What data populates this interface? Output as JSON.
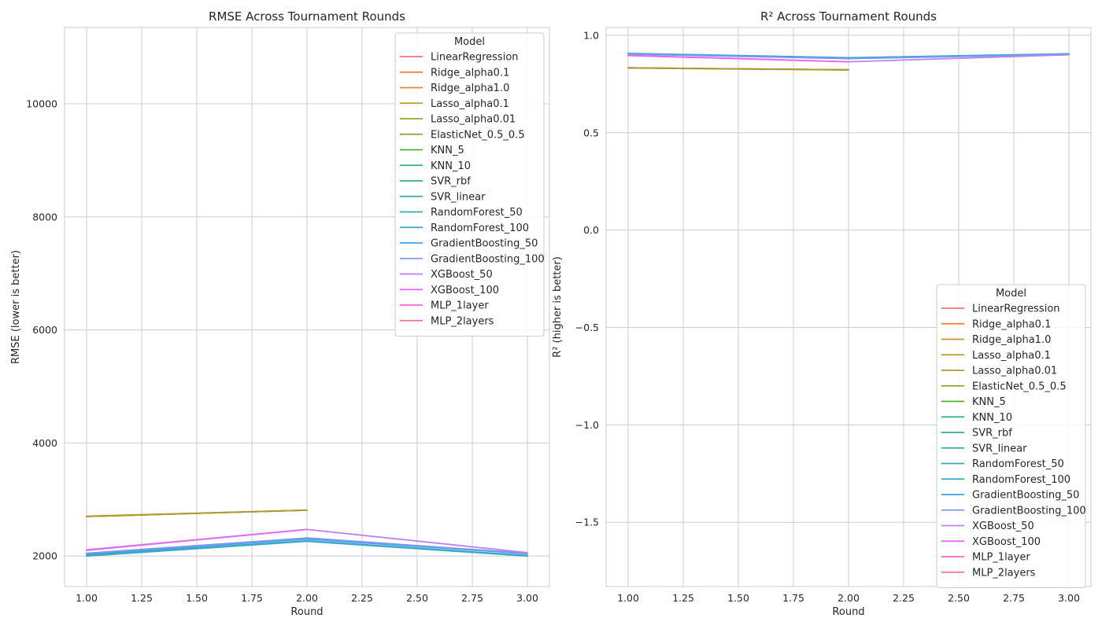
{
  "colors": {
    "LinearRegression": "#f77189",
    "Ridge_alpha0.1": "#ee7b3a",
    "Ridge_alpha1.0": "#d58c32",
    "Lasso_alpha0.1": "#bd9932",
    "Lasso_alpha0.01": "#a69e31",
    "ElasticNet_0.5_0.5": "#86a431",
    "KNN_5": "#50b131",
    "KNN_10": "#33b07a",
    "SVR_rbf": "#34ae91",
    "SVR_linear": "#36ada4",
    "RandomForest_50": "#37abb4",
    "RandomForest_100": "#39a7d0",
    "GradientBoosting_50": "#3ba3ec",
    "GradientBoosting_100": "#8197f4",
    "XGBoost_50": "#bb83f4",
    "XGBoost_100": "#e866f4",
    "MLP_1layer": "#f565cc",
    "MLP_2layers": "#f66bad",
    "grid": "#cccccc",
    "spine": "#cccccc"
  },
  "chart_data": [
    {
      "type": "line",
      "title": "RMSE Across Tournament Rounds",
      "xlabel": "Round",
      "ylabel": "RMSE (lower is better)",
      "xlim": [
        0.9,
        3.1
      ],
      "ylim": [
        1460,
        11350
      ],
      "xticks": [
        1.0,
        1.25,
        1.5,
        1.75,
        2.0,
        2.25,
        2.5,
        2.75,
        3.0
      ],
      "xtick_labels": [
        "1.00",
        "1.25",
        "1.50",
        "1.75",
        "2.00",
        "2.25",
        "2.50",
        "2.75",
        "3.00"
      ],
      "yticks": [
        2000,
        4000,
        6000,
        8000,
        10000
      ],
      "ytick_labels": [
        "2000",
        "4000",
        "6000",
        "8000",
        "10000"
      ],
      "grid": true,
      "legend_title": "Model",
      "legend_position": "top-right",
      "legend_entries": [
        "LinearRegression",
        "Ridge_alpha0.1",
        "Ridge_alpha1.0",
        "Lasso_alpha0.1",
        "Lasso_alpha0.01",
        "ElasticNet_0.5_0.5",
        "KNN_5",
        "KNN_10",
        "SVR_rbf",
        "SVR_linear",
        "RandomForest_50",
        "RandomForest_100",
        "GradientBoosting_50",
        "GradientBoosting_100",
        "XGBoost_50",
        "XGBoost_100",
        "MLP_1layer",
        "MLP_2layers"
      ],
      "series": [
        {
          "name": "LinearRegression",
          "x": [
            1,
            2
          ],
          "y": [
            2700,
            2810
          ]
        },
        {
          "name": "Ridge_alpha0.1",
          "x": [
            1,
            2
          ],
          "y": [
            2700,
            2810
          ]
        },
        {
          "name": "Ridge_alpha1.0",
          "x": [
            1,
            2
          ],
          "y": [
            2705,
            2812
          ]
        },
        {
          "name": "Lasso_alpha0.1",
          "x": [
            1,
            2
          ],
          "y": [
            2700,
            2810
          ]
        },
        {
          "name": "Lasso_alpha0.01",
          "x": [
            1,
            2
          ],
          "y": [
            2700,
            2810
          ]
        },
        {
          "name": "RandomForest_50",
          "x": [
            1,
            2,
            3
          ],
          "y": [
            2020,
            2270,
            2010
          ]
        },
        {
          "name": "RandomForest_100",
          "x": [
            1,
            2,
            3
          ],
          "y": [
            2000,
            2260,
            2000
          ]
        },
        {
          "name": "GradientBoosting_50",
          "x": [
            1,
            2,
            3
          ],
          "y": [
            2040,
            2300,
            2040
          ]
        },
        {
          "name": "GradientBoosting_100",
          "x": [
            1,
            2,
            3
          ],
          "y": [
            2050,
            2320,
            2050
          ]
        },
        {
          "name": "XGBoost_50",
          "x": [
            1,
            2,
            3
          ],
          "y": [
            2100,
            2470,
            2060
          ]
        },
        {
          "name": "XGBoost_100",
          "x": [
            1,
            2
          ],
          "y": [
            2110,
            2470
          ]
        }
      ]
    },
    {
      "type": "line",
      "title": "R² Across Tournament Rounds",
      "xlabel": "Round",
      "ylabel": "R² (higher is better)",
      "xlim": [
        0.9,
        3.1
      ],
      "ylim": [
        -1.83,
        1.04
      ],
      "xticks": [
        1.0,
        1.25,
        1.5,
        1.75,
        2.0,
        2.25,
        2.5,
        2.75,
        3.0
      ],
      "xtick_labels": [
        "1.00",
        "1.25",
        "1.50",
        "1.75",
        "2.00",
        "2.25",
        "2.50",
        "2.75",
        "3.00"
      ],
      "yticks": [
        1.0,
        0.5,
        0.0,
        -0.5,
        -1.0,
        -1.5
      ],
      "ytick_labels": [
        "1.0",
        "0.5",
        "0.0",
        "−0.5",
        "−1.0",
        "−1.5"
      ],
      "grid": true,
      "legend_title": "Model",
      "legend_position": "bottom-right",
      "legend_entries": [
        "LinearRegression",
        "Ridge_alpha0.1",
        "Ridge_alpha1.0",
        "Lasso_alpha0.1",
        "Lasso_alpha0.01",
        "ElasticNet_0.5_0.5",
        "KNN_5",
        "KNN_10",
        "SVR_rbf",
        "SVR_linear",
        "RandomForest_50",
        "RandomForest_100",
        "GradientBoosting_50",
        "GradientBoosting_100",
        "XGBoost_50",
        "XGBoost_100",
        "MLP_1layer",
        "MLP_2layers"
      ],
      "series": [
        {
          "name": "LinearRegression",
          "x": [
            1,
            2
          ],
          "y": [
            0.833,
            0.823
          ]
        },
        {
          "name": "Ridge_alpha0.1",
          "x": [
            1,
            2
          ],
          "y": [
            0.833,
            0.823
          ]
        },
        {
          "name": "Ridge_alpha1.0",
          "x": [
            1,
            2
          ],
          "y": [
            0.832,
            0.822
          ]
        },
        {
          "name": "Lasso_alpha0.1",
          "x": [
            1,
            2
          ],
          "y": [
            0.833,
            0.823
          ]
        },
        {
          "name": "Lasso_alpha0.01",
          "x": [
            1,
            2
          ],
          "y": [
            0.833,
            0.823
          ]
        },
        {
          "name": "RandomForest_50",
          "x": [
            1,
            2,
            3
          ],
          "y": [
            0.905,
            0.884,
            0.904
          ]
        },
        {
          "name": "RandomForest_100",
          "x": [
            1,
            2,
            3
          ],
          "y": [
            0.907,
            0.885,
            0.905
          ]
        },
        {
          "name": "GradientBoosting_50",
          "x": [
            1,
            2,
            3
          ],
          "y": [
            0.904,
            0.882,
            0.902
          ]
        },
        {
          "name": "GradientBoosting_100",
          "x": [
            1,
            2,
            3
          ],
          "y": [
            0.903,
            0.88,
            0.901
          ]
        },
        {
          "name": "XGBoost_50",
          "x": [
            1,
            2,
            3
          ],
          "y": [
            0.897,
            0.864,
            0.9
          ]
        },
        {
          "name": "XGBoost_100",
          "x": [
            1,
            2
          ],
          "y": [
            0.896,
            0.864
          ]
        }
      ]
    }
  ]
}
